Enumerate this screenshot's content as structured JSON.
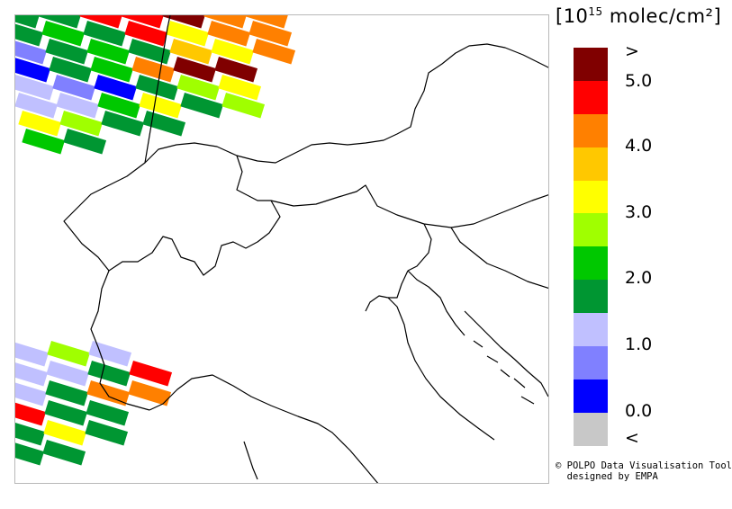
{
  "legend": {
    "unit_prefix": "[10",
    "unit_exponent": "15",
    "unit_suffix": " molec/cm²]",
    "bins": [
      {
        "color": "#800000"
      },
      {
        "color": "#ff0000"
      },
      {
        "color": "#ff8000"
      },
      {
        "color": "#ffc800"
      },
      {
        "color": "#ffff00"
      },
      {
        "color": "#a0ff00"
      },
      {
        "color": "#00c800"
      },
      {
        "color": "#009632"
      },
      {
        "color": "#c0c0ff"
      },
      {
        "color": "#8080ff"
      },
      {
        "color": "#0000ff"
      },
      {
        "color": "#c8c8c8"
      }
    ],
    "labels": [
      ">",
      "5.0",
      "4.0",
      "3.0",
      "2.0",
      "1.0",
      "0.0",
      "<"
    ]
  },
  "credits": {
    "line1": "© POLPO Data Visualisation Tool",
    "line2": "  designed by EMPA"
  },
  "map": {
    "border_color": "#000000",
    "swath_top": {
      "rows": [
        [
          "#009632",
          "#009632",
          "#ff0000",
          "#ff0000",
          "#800000",
          "#ff8000",
          "#ff8000"
        ],
        [
          "#009632",
          "#00c800",
          "#009632",
          "#ff0000",
          "#ffff00",
          "#ff8000",
          "#ff8000"
        ],
        [
          "#8080ff",
          "#009632",
          "#00c800",
          "#009632",
          "#ffc800",
          "#ffff00",
          "#ff8000"
        ],
        [
          "#0000ff",
          "#009632",
          "#00c800",
          "#ff8000",
          "#800000",
          "#800000"
        ],
        [
          "#c0c0ff",
          "#8080ff",
          "#0000ff",
          "#009632",
          "#a0ff00",
          "#ffff00"
        ],
        [
          "#c0c0ff",
          "#c0c0ff",
          "#00c800",
          "#ffff00",
          "#009632",
          "#a0ff00"
        ],
        [
          "#ffff00",
          "#a0ff00",
          "#009632",
          "#009632"
        ],
        [
          "#00c800",
          "#009632"
        ]
      ]
    },
    "swath_bottom": {
      "rows": [
        [
          "#c0c0ff",
          "#a0ff00",
          "#c0c0ff"
        ],
        [
          "#c0c0ff",
          "#c0c0ff",
          "#009632",
          "#ff0000"
        ],
        [
          "#c0c0ff",
          "#009632",
          "#ff8000",
          "#ff8000"
        ],
        [
          "#ff0000",
          "#009632",
          "#009632"
        ],
        [
          "#009632",
          "#ffff00",
          "#009632"
        ],
        [
          "#009632",
          "#009632"
        ]
      ]
    }
  }
}
